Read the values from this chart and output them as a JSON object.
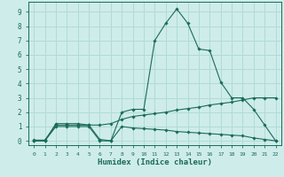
{
  "xlabel": "Humidex (Indice chaleur)",
  "background_color": "#ceecea",
  "grid_color": "#b0dbd8",
  "line_color": "#1a6b5a",
  "x_ticks": [
    0,
    1,
    2,
    3,
    4,
    5,
    6,
    7,
    8,
    9,
    10,
    11,
    12,
    13,
    14,
    15,
    16,
    17,
    18,
    19,
    20,
    21,
    22
  ],
  "y_ticks": [
    0,
    1,
    2,
    3,
    4,
    5,
    6,
    7,
    8,
    9
  ],
  "xlim": [
    -0.5,
    22.5
  ],
  "ylim": [
    -0.3,
    9.7
  ],
  "line1_x": [
    0,
    1,
    2,
    3,
    4,
    5,
    6,
    7,
    8,
    9,
    10,
    11,
    12,
    13,
    14,
    15,
    16,
    17,
    18,
    19,
    20,
    21,
    22
  ],
  "line1_y": [
    0,
    0,
    1.2,
    1.2,
    1.2,
    1.1,
    0.1,
    0.0,
    2.0,
    2.2,
    2.2,
    7.0,
    8.2,
    9.2,
    8.2,
    6.4,
    6.3,
    4.1,
    3.0,
    3.0,
    2.2,
    1.1,
    0
  ],
  "line2_x": [
    0,
    1,
    2,
    3,
    4,
    5,
    6,
    7,
    8,
    9,
    10,
    11,
    12,
    13,
    14,
    15,
    16,
    17,
    18,
    19,
    20,
    21,
    22
  ],
  "line2_y": [
    0.05,
    0.05,
    1.1,
    1.1,
    1.1,
    1.1,
    1.1,
    1.2,
    1.5,
    1.7,
    1.8,
    1.9,
    2.0,
    2.15,
    2.25,
    2.35,
    2.5,
    2.6,
    2.7,
    2.85,
    3.0,
    3.0,
    3.0
  ],
  "line3_x": [
    0,
    1,
    2,
    3,
    4,
    5,
    6,
    7,
    8,
    9,
    10,
    11,
    12,
    13,
    14,
    15,
    16,
    17,
    18,
    19,
    20,
    21,
    22
  ],
  "line3_y": [
    0.0,
    0.0,
    1.0,
    1.0,
    1.0,
    1.0,
    0.0,
    0.0,
    1.0,
    0.9,
    0.85,
    0.8,
    0.75,
    0.65,
    0.6,
    0.55,
    0.5,
    0.45,
    0.4,
    0.35,
    0.2,
    0.1,
    0.0
  ]
}
